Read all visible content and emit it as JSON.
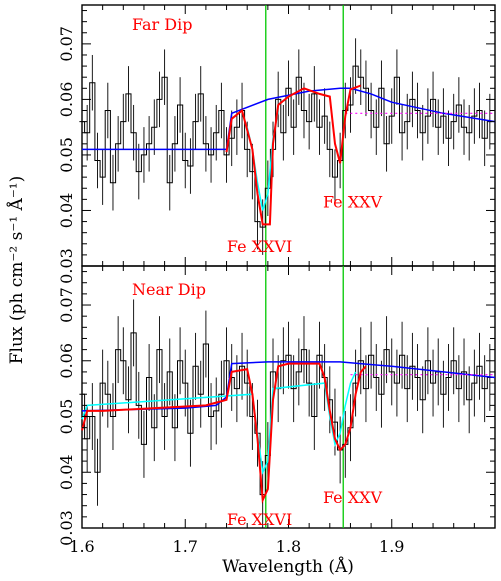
{
  "figure": {
    "ylabel": "Flux (ph cm⁻² s⁻¹ Å⁻¹)",
    "xlabel": "Wavelength (Å)"
  },
  "chart_data": [
    {
      "type": "line",
      "panel": "top",
      "title": "Far Dip",
      "xlabel": "Wavelength (Å)",
      "ylabel": "Flux (ph cm⁻² s⁻¹ Å⁻¹)",
      "xlim": [
        1.6,
        2.0
      ],
      "ylim": [
        0.03,
        0.077
      ],
      "x_ticks": [
        "1.6",
        "1.7",
        "1.8",
        "1.9"
      ],
      "y_ticks": [
        "0.03",
        "0.04",
        "0.05",
        "0.06",
        "0.07"
      ],
      "vertical_lines": [
        1.778,
        1.853
      ],
      "annotations": [
        {
          "text": "Fe XXVI",
          "x": 1.772,
          "y": 0.0325
        },
        {
          "text": "Fe XXV",
          "x": 1.862,
          "y": 0.0405
        }
      ],
      "series": [
        {
          "style": "data-histogram",
          "x": [
            1.6,
            1.605,
            1.61,
            1.615,
            1.62,
            1.625,
            1.63,
            1.635,
            1.64,
            1.645,
            1.65,
            1.655,
            1.66,
            1.665,
            1.67,
            1.675,
            1.68,
            1.685,
            1.69,
            1.695,
            1.7,
            1.705,
            1.71,
            1.715,
            1.72,
            1.725,
            1.73,
            1.735,
            1.74,
            1.745,
            1.75,
            1.755,
            1.76,
            1.765,
            1.77,
            1.775,
            1.78,
            1.785,
            1.79,
            1.795,
            1.8,
            1.805,
            1.81,
            1.815,
            1.82,
            1.825,
            1.83,
            1.835,
            1.84,
            1.845,
            1.85,
            1.855,
            1.86,
            1.865,
            1.87,
            1.875,
            1.88,
            1.885,
            1.89,
            1.895,
            1.9,
            1.905,
            1.91,
            1.915,
            1.92,
            1.925,
            1.93,
            1.935,
            1.94,
            1.945,
            1.95,
            1.955,
            1.96,
            1.965,
            1.97,
            1.975,
            1.98,
            1.985,
            1.99,
            1.995
          ],
          "y": [
            0.056,
            0.054,
            0.063,
            0.049,
            0.046,
            0.058,
            0.045,
            0.052,
            0.056,
            0.061,
            0.054,
            0.047,
            0.05,
            0.052,
            0.055,
            0.06,
            0.064,
            0.045,
            0.052,
            0.059,
            0.049,
            0.048,
            0.056,
            0.061,
            0.052,
            0.05,
            0.054,
            0.058,
            0.05,
            0.053,
            0.055,
            0.058,
            0.051,
            0.047,
            0.038,
            0.037,
            0.044,
            0.051,
            0.06,
            0.054,
            0.062,
            0.055,
            0.064,
            0.058,
            0.056,
            0.061,
            0.055,
            0.057,
            0.051,
            0.046,
            0.049,
            0.058,
            0.059,
            0.066,
            0.064,
            0.062,
            0.058,
            0.055,
            0.062,
            0.052,
            0.057,
            0.064,
            0.054,
            0.056,
            0.06,
            0.058,
            0.054,
            0.057,
            0.06,
            0.055,
            0.057,
            0.053,
            0.056,
            0.059,
            0.055,
            0.054,
            0.057,
            0.058,
            0.053,
            0.056
          ],
          "err": 0.005
        },
        {
          "style": "blue-continuum",
          "x": [
            1.6,
            1.7,
            1.74,
            1.745,
            1.78,
            1.82,
            1.85,
            1.86,
            1.88,
            1.9,
            1.95,
            2.0
          ],
          "y": [
            0.051,
            0.051,
            0.051,
            0.0575,
            0.06,
            0.0615,
            0.062,
            0.062,
            0.061,
            0.0595,
            0.0575,
            0.056
          ]
        },
        {
          "style": "red-model",
          "x": [
            1.74,
            1.745,
            1.755,
            1.765,
            1.77,
            1.775,
            1.782,
            1.785,
            1.79,
            1.8,
            1.815,
            1.83,
            1.84,
            1.845,
            1.85,
            1.855,
            1.86,
            1.87
          ],
          "y": [
            0.0505,
            0.0565,
            0.058,
            0.051,
            0.043,
            0.0375,
            0.0375,
            0.052,
            0.059,
            0.0605,
            0.062,
            0.061,
            0.0605,
            0.052,
            0.0485,
            0.057,
            0.0618,
            0.0625
          ]
        },
        {
          "style": "cyan-model",
          "x": [
            1.76,
            1.765,
            1.77,
            1.775,
            1.78,
            1.785,
            1.79
          ],
          "y": [
            0.055,
            0.051,
            0.045,
            0.04,
            0.043,
            0.053,
            0.058
          ]
        },
        {
          "style": "magenta-dotted",
          "x": [
            1.855,
            1.87,
            1.9,
            1.95,
            2.0
          ],
          "y": [
            0.0575,
            0.0575,
            0.0575,
            0.0575,
            0.0575
          ]
        }
      ]
    },
    {
      "type": "line",
      "panel": "bottom",
      "title": "Near Dip",
      "xlabel": "Wavelength (Å)",
      "ylabel": "Flux (ph cm⁻² s⁻¹ Å⁻¹)",
      "xlim": [
        1.6,
        2.0
      ],
      "ylim": [
        0.03,
        0.077
      ],
      "x_ticks": [
        "1.6",
        "1.7",
        "1.8",
        "1.9"
      ],
      "y_ticks": [
        "0.03",
        "0.04",
        "0.05",
        "0.06",
        "0.07"
      ],
      "vertical_lines": [
        1.778,
        1.853
      ],
      "annotations": [
        {
          "text": "Fe XXVI",
          "x": 1.772,
          "y": 0.0305
        },
        {
          "text": "Fe XXV",
          "x": 1.862,
          "y": 0.0345
        }
      ],
      "series": [
        {
          "style": "data-histogram",
          "x": [
            1.6,
            1.605,
            1.61,
            1.615,
            1.62,
            1.625,
            1.63,
            1.635,
            1.64,
            1.645,
            1.65,
            1.655,
            1.66,
            1.665,
            1.67,
            1.675,
            1.68,
            1.685,
            1.69,
            1.695,
            1.7,
            1.705,
            1.71,
            1.715,
            1.72,
            1.725,
            1.73,
            1.735,
            1.74,
            1.745,
            1.75,
            1.755,
            1.76,
            1.765,
            1.77,
            1.775,
            1.78,
            1.785,
            1.79,
            1.795,
            1.8,
            1.805,
            1.81,
            1.815,
            1.82,
            1.825,
            1.83,
            1.835,
            1.84,
            1.845,
            1.85,
            1.855,
            1.86,
            1.865,
            1.87,
            1.875,
            1.88,
            1.885,
            1.89,
            1.895,
            1.9,
            1.905,
            1.91,
            1.915,
            1.92,
            1.925,
            1.93,
            1.935,
            1.94,
            1.945,
            1.95,
            1.955,
            1.96,
            1.965,
            1.97,
            1.975,
            1.98,
            1.985,
            1.99,
            1.995
          ],
          "y": [
            0.054,
            0.046,
            0.05,
            0.04,
            0.056,
            0.054,
            0.05,
            0.062,
            0.06,
            0.053,
            0.065,
            0.052,
            0.045,
            0.057,
            0.048,
            0.062,
            0.05,
            0.058,
            0.048,
            0.06,
            0.056,
            0.047,
            0.059,
            0.054,
            0.063,
            0.05,
            0.051,
            0.054,
            0.06,
            0.057,
            0.055,
            0.059,
            0.056,
            0.05,
            0.047,
            0.036,
            0.043,
            0.058,
            0.055,
            0.06,
            0.061,
            0.055,
            0.058,
            0.062,
            0.056,
            0.05,
            0.061,
            0.057,
            0.053,
            0.049,
            0.044,
            0.045,
            0.048,
            0.056,
            0.06,
            0.055,
            0.061,
            0.057,
            0.054,
            0.062,
            0.058,
            0.056,
            0.061,
            0.055,
            0.059,
            0.057,
            0.053,
            0.06,
            0.056,
            0.058,
            0.054,
            0.057,
            0.06,
            0.055,
            0.058,
            0.053,
            0.056,
            0.059,
            0.055,
            0.057
          ],
          "err": 0.006
        },
        {
          "style": "blue-continuum",
          "x": [
            1.6,
            1.7,
            1.73,
            1.74,
            1.745,
            1.78,
            1.85,
            1.9,
            1.95,
            2.0
          ],
          "y": [
            0.051,
            0.0515,
            0.052,
            0.0535,
            0.0595,
            0.0598,
            0.0598,
            0.059,
            0.058,
            0.057
          ]
        },
        {
          "style": "red-model",
          "x": [
            1.6,
            1.605,
            1.62,
            1.72,
            1.74,
            1.745,
            1.76,
            1.765,
            1.77,
            1.775,
            1.78,
            1.785,
            1.79,
            1.8,
            1.83,
            1.835,
            1.84,
            1.845,
            1.85,
            1.855,
            1.86,
            1.865,
            1.87,
            1.875
          ],
          "y": [
            0.0475,
            0.051,
            0.051,
            0.052,
            0.053,
            0.058,
            0.0585,
            0.054,
            0.046,
            0.035,
            0.037,
            0.053,
            0.059,
            0.0595,
            0.0595,
            0.057,
            0.051,
            0.046,
            0.044,
            0.045,
            0.048,
            0.054,
            0.058,
            0.059
          ]
        },
        {
          "style": "cyan-model",
          "x": [
            1.6,
            1.605,
            1.765,
            1.77,
            1.775,
            1.78,
            1.785,
            1.835,
            1.84,
            1.845,
            1.85,
            1.855,
            1.86,
            1.865
          ],
          "y": [
            0.0495,
            0.052,
            0.054,
            0.047,
            0.04,
            0.042,
            0.055,
            0.056,
            0.05,
            0.045,
            0.047,
            0.052,
            0.056,
            0.058
          ]
        },
        {
          "style": "magenta-dotted",
          "x": [
            1.86,
            1.87,
            1.9,
            1.95,
            2.0
          ],
          "y": [
            0.0575,
            0.0575,
            0.0575,
            0.0575,
            0.0575
          ]
        }
      ]
    }
  ]
}
